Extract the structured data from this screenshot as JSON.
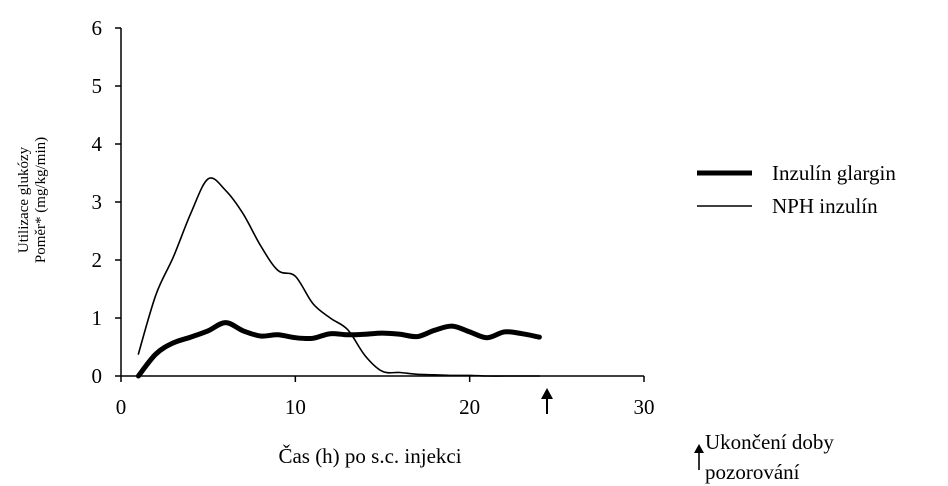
{
  "chart_data": {
    "type": "line",
    "title": "",
    "xlabel": "Čas (h) po s.c. injekci",
    "ylabel_lines": [
      "Utilizace glukózy",
      "Poměr* (mg/kg/min)"
    ],
    "xlim": [
      0,
      30
    ],
    "ylim": [
      0,
      6
    ],
    "x_ticks": [
      0,
      10,
      20,
      30
    ],
    "y_ticks": [
      0,
      1,
      2,
      3,
      4,
      5,
      6
    ],
    "grid": false,
    "legend_position": "right",
    "series": [
      {
        "name": "Inzulín glargin",
        "line_style": "thick",
        "x": [
          1,
          2,
          3,
          4,
          5,
          6,
          7,
          8,
          9,
          10,
          11,
          12,
          13,
          14,
          15,
          16,
          17,
          18,
          19,
          20,
          21,
          22,
          23,
          24
        ],
        "y": [
          0,
          0.38,
          0.57,
          0.67,
          0.78,
          0.92,
          0.78,
          0.69,
          0.71,
          0.66,
          0.65,
          0.73,
          0.71,
          0.72,
          0.74,
          0.72,
          0.68,
          0.79,
          0.86,
          0.76,
          0.66,
          0.76,
          0.73,
          0.67
        ]
      },
      {
        "name": "NPH inzulín",
        "line_style": "thin",
        "x": [
          1,
          2,
          3,
          4,
          5,
          6,
          7,
          8,
          9,
          10,
          11,
          12,
          13,
          14,
          15,
          16,
          17,
          18,
          19,
          20,
          21,
          22,
          23,
          24
        ],
        "y": [
          0.38,
          1.4,
          2.05,
          2.8,
          3.4,
          3.2,
          2.8,
          2.25,
          1.82,
          1.72,
          1.25,
          1.0,
          0.8,
          0.35,
          0.08,
          0.06,
          0.03,
          0.02,
          0.01,
          0.01,
          0.0,
          0.0,
          0.0,
          0.0
        ]
      }
    ],
    "annotation": {
      "arrow_at_x": 24.2,
      "note_lines": [
        "Ukončení doby",
        "pozorování"
      ]
    }
  }
}
